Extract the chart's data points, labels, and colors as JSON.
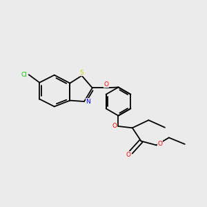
{
  "background_color": "#ebebeb",
  "bond_color": "#000000",
  "bond_width": 1.3,
  "figsize": [
    3.0,
    3.0
  ],
  "dpi": 100,
  "atom_colors": {
    "Cl": "#00cc00",
    "S": "#cccc00",
    "O": "#ff0000",
    "N": "#0000ff",
    "C": "#000000"
  },
  "xlim": [
    0,
    10
  ],
  "ylim": [
    0,
    10
  ]
}
